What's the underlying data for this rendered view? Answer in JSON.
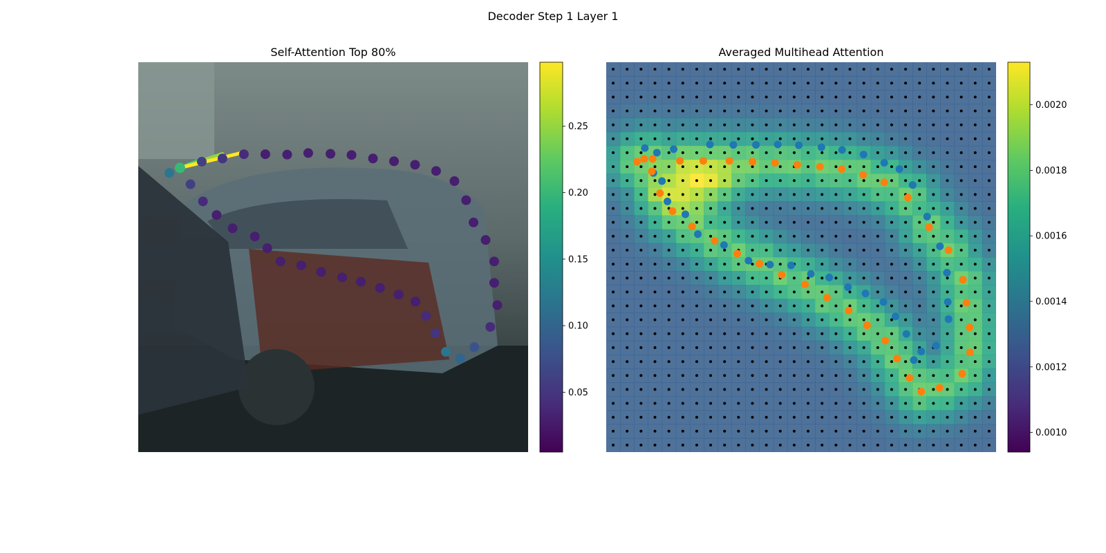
{
  "figure": {
    "title": "Decoder Step 1 Layer 1"
  },
  "chart_data": [
    {
      "type": "scatter",
      "title": "Self-Attention Top 80%",
      "xlabel": "",
      "ylabel": "",
      "colormap": "viridis",
      "colorbar": {
        "range": [
          0.005,
          0.298
        ],
        "ticks": [
          0.05,
          0.1,
          0.15,
          0.2,
          0.25
        ]
      },
      "coord_range": {
        "x": [
          0,
          1
        ],
        "y": [
          0,
          1
        ]
      },
      "query_point": {
        "x": 0.107,
        "y": 0.271,
        "attention": 0.2
      },
      "attention_lines": [
        {
          "from": [
            0.107,
            0.271
          ],
          "to": [
            0.163,
            0.248
          ],
          "weight": 0.2
        },
        {
          "from": [
            0.107,
            0.271
          ],
          "to": [
            0.216,
            0.235
          ],
          "weight": 0.25
        },
        {
          "from": [
            0.107,
            0.271
          ],
          "to": [
            0.271,
            0.231
          ],
          "weight": 0.298
        }
      ],
      "points": [
        {
          "x": 0.163,
          "y": 0.255,
          "v": 0.06
        },
        {
          "x": 0.216,
          "y": 0.247,
          "v": 0.05
        },
        {
          "x": 0.271,
          "y": 0.236,
          "v": 0.04
        },
        {
          "x": 0.326,
          "y": 0.236,
          "v": 0.03
        },
        {
          "x": 0.382,
          "y": 0.237,
          "v": 0.03
        },
        {
          "x": 0.436,
          "y": 0.233,
          "v": 0.03
        },
        {
          "x": 0.493,
          "y": 0.235,
          "v": 0.03
        },
        {
          "x": 0.547,
          "y": 0.238,
          "v": 0.03
        },
        {
          "x": 0.602,
          "y": 0.247,
          "v": 0.03
        },
        {
          "x": 0.656,
          "y": 0.254,
          "v": 0.03
        },
        {
          "x": 0.71,
          "y": 0.263,
          "v": 0.03
        },
        {
          "x": 0.764,
          "y": 0.279,
          "v": 0.03
        },
        {
          "x": 0.811,
          "y": 0.305,
          "v": 0.03
        },
        {
          "x": 0.841,
          "y": 0.354,
          "v": 0.03
        },
        {
          "x": 0.86,
          "y": 0.411,
          "v": 0.03
        },
        {
          "x": 0.891,
          "y": 0.456,
          "v": 0.03
        },
        {
          "x": 0.913,
          "y": 0.511,
          "v": 0.03
        },
        {
          "x": 0.913,
          "y": 0.566,
          "v": 0.03
        },
        {
          "x": 0.921,
          "y": 0.623,
          "v": 0.03
        },
        {
          "x": 0.903,
          "y": 0.679,
          "v": 0.04
        },
        {
          "x": 0.862,
          "y": 0.731,
          "v": 0.08
        },
        {
          "x": 0.826,
          "y": 0.76,
          "v": 0.1
        },
        {
          "x": 0.789,
          "y": 0.743,
          "v": 0.12
        },
        {
          "x": 0.762,
          "y": 0.695,
          "v": 0.05
        },
        {
          "x": 0.738,
          "y": 0.651,
          "v": 0.04
        },
        {
          "x": 0.711,
          "y": 0.614,
          "v": 0.03
        },
        {
          "x": 0.668,
          "y": 0.596,
          "v": 0.03
        },
        {
          "x": 0.62,
          "y": 0.579,
          "v": 0.03
        },
        {
          "x": 0.571,
          "y": 0.563,
          "v": 0.03
        },
        {
          "x": 0.523,
          "y": 0.552,
          "v": 0.03
        },
        {
          "x": 0.469,
          "y": 0.538,
          "v": 0.03
        },
        {
          "x": 0.418,
          "y": 0.521,
          "v": 0.03
        },
        {
          "x": 0.365,
          "y": 0.511,
          "v": 0.03
        },
        {
          "x": 0.331,
          "y": 0.477,
          "v": 0.03
        },
        {
          "x": 0.299,
          "y": 0.447,
          "v": 0.03
        },
        {
          "x": 0.242,
          "y": 0.426,
          "v": 0.03
        },
        {
          "x": 0.201,
          "y": 0.392,
          "v": 0.03
        },
        {
          "x": 0.166,
          "y": 0.357,
          "v": 0.04
        },
        {
          "x": 0.134,
          "y": 0.313,
          "v": 0.06
        },
        {
          "x": 0.08,
          "y": 0.284,
          "v": 0.12
        }
      ]
    },
    {
      "type": "heatmap",
      "title": "Averaged Multihead Attention",
      "xlabel": "",
      "ylabel": "",
      "colormap": "viridis",
      "colorbar": {
        "range": [
          0.00094,
          0.00213
        ],
        "ticks": [
          0.001,
          0.0012,
          0.0014,
          0.0016,
          0.0018,
          0.002
        ]
      },
      "grid_size": [
        28,
        28
      ],
      "reference_point_grid": true,
      "series": [
        {
          "name": "",
          "color": "#1f77b4",
          "points": [
            [
              0.099,
              0.22
            ],
            [
              0.13,
              0.232
            ],
            [
              0.173,
              0.223
            ],
            [
              0.266,
              0.211
            ],
            [
              0.326,
              0.212
            ],
            [
              0.384,
              0.212
            ],
            [
              0.44,
              0.211
            ],
            [
              0.494,
              0.213
            ],
            [
              0.552,
              0.218
            ],
            [
              0.605,
              0.225
            ],
            [
              0.66,
              0.237
            ],
            [
              0.713,
              0.258
            ],
            [
              0.752,
              0.274
            ],
            [
              0.786,
              0.315
            ],
            [
              0.823,
              0.396
            ],
            [
              0.856,
              0.472
            ],
            [
              0.874,
              0.54
            ],
            [
              0.876,
              0.615
            ],
            [
              0.878,
              0.659
            ],
            [
              0.846,
              0.727
            ],
            [
              0.808,
              0.742
            ],
            [
              0.789,
              0.764
            ],
            [
              0.77,
              0.697
            ],
            [
              0.742,
              0.652
            ],
            [
              0.711,
              0.615
            ],
            [
              0.665,
              0.593
            ],
            [
              0.62,
              0.577
            ],
            [
              0.572,
              0.552
            ],
            [
              0.525,
              0.543
            ],
            [
              0.474,
              0.521
            ],
            [
              0.42,
              0.519
            ],
            [
              0.365,
              0.509
            ],
            [
              0.302,
              0.469
            ],
            [
              0.235,
              0.441
            ],
            [
              0.203,
              0.39
            ],
            [
              0.157,
              0.357
            ],
            [
              0.143,
              0.305
            ],
            [
              0.121,
              0.284
            ]
          ]
        },
        {
          "name": "",
          "color": "#ff7f0e",
          "points": [
            [
              0.079,
              0.255
            ],
            [
              0.119,
              0.248
            ],
            [
              0.189,
              0.253
            ],
            [
              0.249,
              0.253
            ],
            [
              0.316,
              0.253
            ],
            [
              0.375,
              0.255
            ],
            [
              0.433,
              0.258
            ],
            [
              0.49,
              0.263
            ],
            [
              0.548,
              0.268
            ],
            [
              0.604,
              0.274
            ],
            [
              0.659,
              0.289
            ],
            [
              0.713,
              0.308
            ],
            [
              0.774,
              0.347
            ],
            [
              0.828,
              0.423
            ],
            [
              0.878,
              0.482
            ],
            [
              0.915,
              0.558
            ],
            [
              0.924,
              0.617
            ],
            [
              0.932,
              0.68
            ],
            [
              0.933,
              0.744
            ],
            [
              0.913,
              0.799
            ],
            [
              0.855,
              0.835
            ],
            [
              0.808,
              0.845
            ],
            [
              0.778,
              0.81
            ],
            [
              0.746,
              0.76
            ],
            [
              0.716,
              0.714
            ],
            [
              0.669,
              0.675
            ],
            [
              0.622,
              0.637
            ],
            [
              0.566,
              0.604
            ],
            [
              0.51,
              0.57
            ],
            [
              0.45,
              0.545
            ],
            [
              0.393,
              0.517
            ],
            [
              0.336,
              0.491
            ],
            [
              0.278,
              0.458
            ],
            [
              0.22,
              0.421
            ],
            [
              0.17,
              0.382
            ],
            [
              0.138,
              0.336
            ],
            [
              0.117,
              0.28
            ],
            [
              0.097,
              0.248
            ]
          ]
        }
      ]
    }
  ]
}
